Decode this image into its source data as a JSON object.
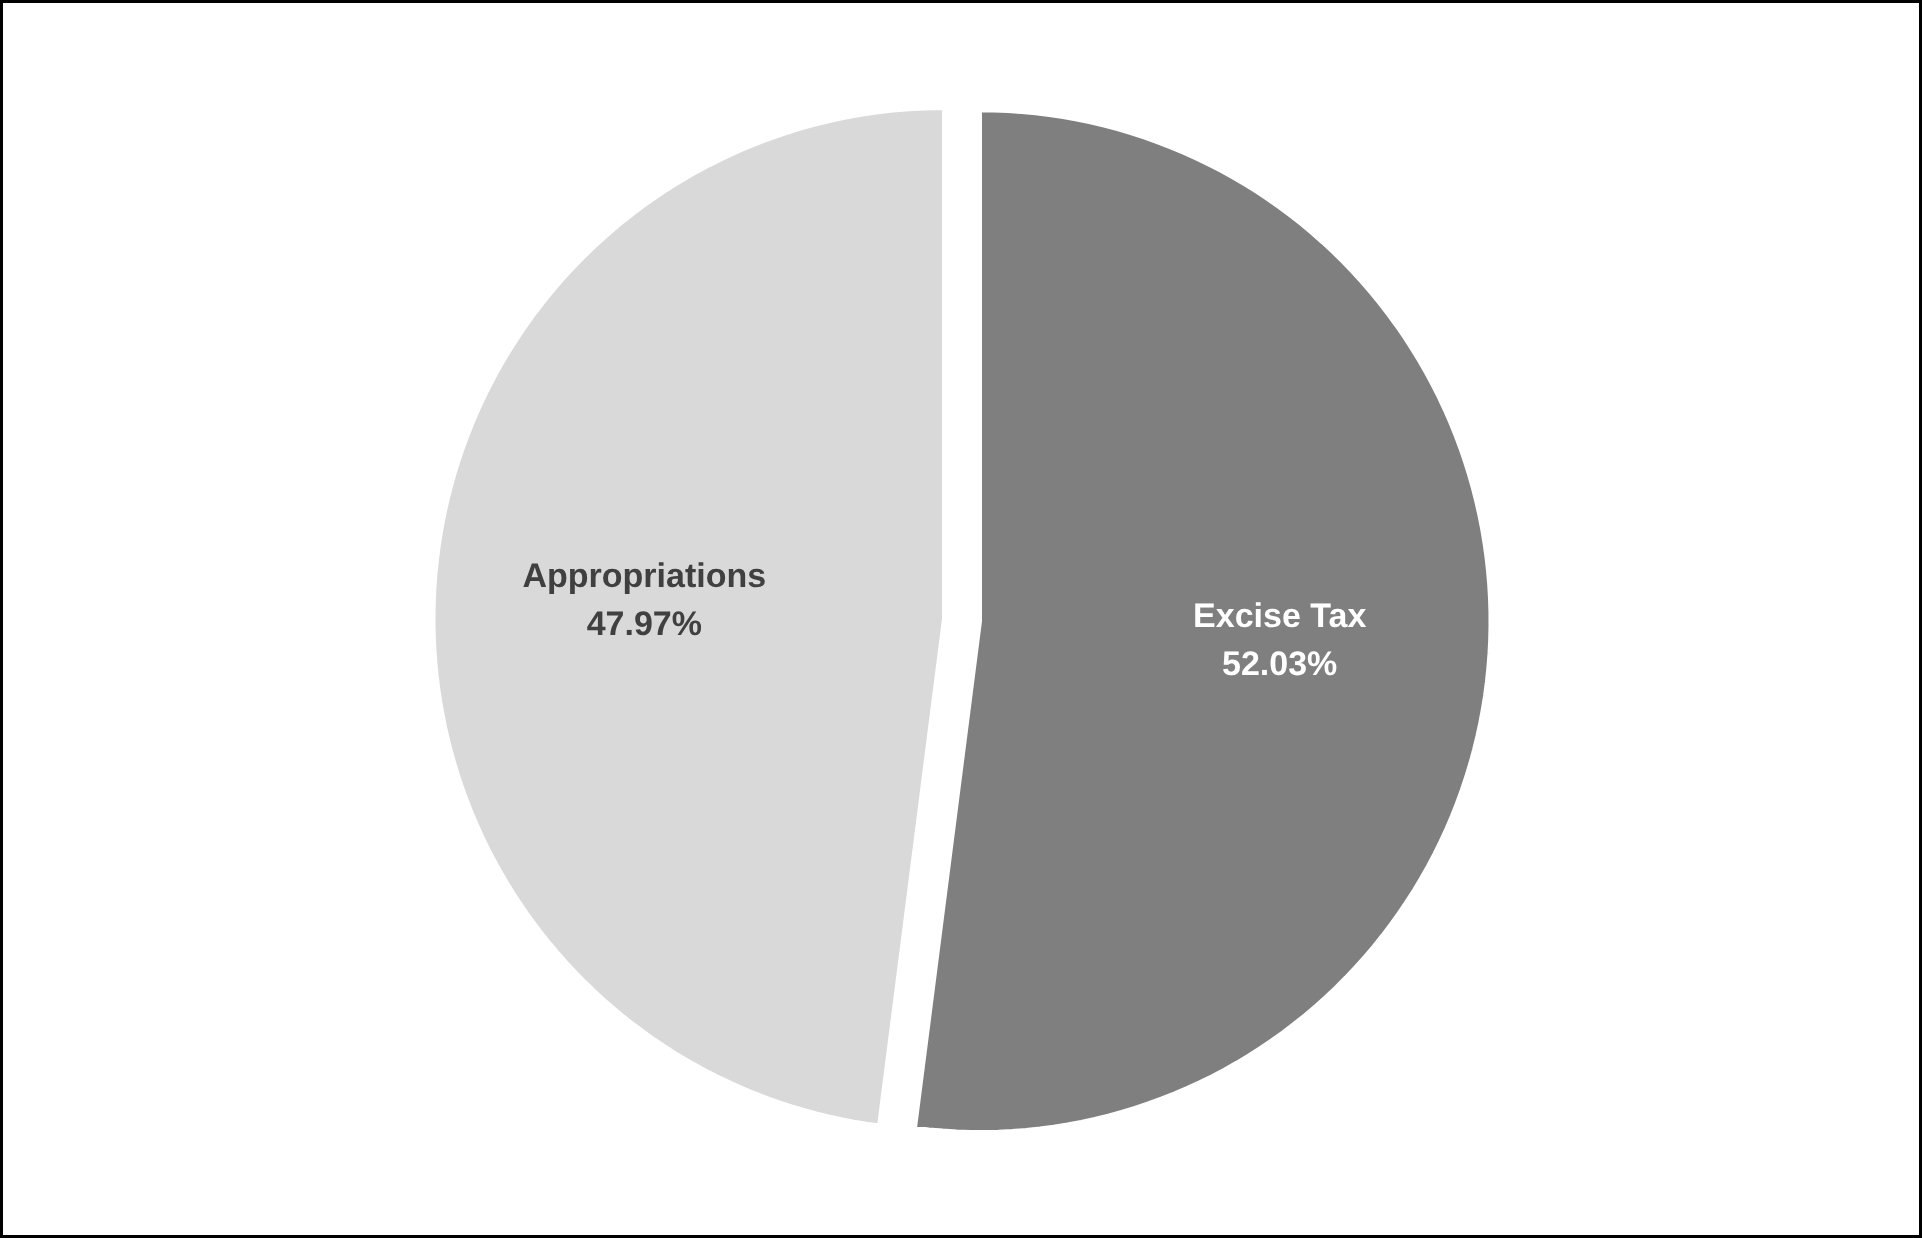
{
  "chart_data": {
    "type": "pie",
    "categories": [
      "Excise Tax",
      "Appropriations"
    ],
    "values": [
      52.03,
      47.97
    ],
    "colors": [
      "#7f7f7f",
      "#d9d9d9"
    ],
    "value_labels": [
      "52.03%",
      "47.97%"
    ]
  }
}
